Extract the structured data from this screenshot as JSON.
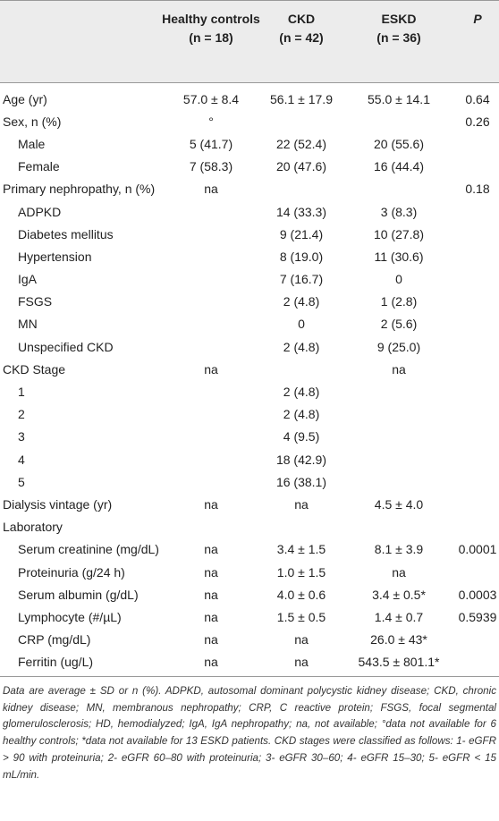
{
  "table": {
    "columns": [
      {
        "name": "Healthy controls",
        "n": "(n = 18)"
      },
      {
        "name": "CKD",
        "n": "(n = 42)"
      },
      {
        "name": "ESKD",
        "n": "(n = 36)"
      },
      {
        "name": "P"
      }
    ],
    "rows": [
      {
        "label": "Age (yr)",
        "healthy": "57.0 ± 8.4",
        "ckd": "56.1 ± 17.9",
        "eskd": "55.0 ± 14.1",
        "p": "0.64"
      },
      {
        "label": "Sex, n (%)",
        "healthy": "°",
        "p": "0.26"
      },
      {
        "label": "Male",
        "healthy": "5 (41.7)",
        "ckd": "22 (52.4)",
        "eskd": "20 (55.6)"
      },
      {
        "label": "Female",
        "healthy": "7 (58.3)",
        "ckd": "20 (47.6)",
        "eskd": "16 (44.4)"
      },
      {
        "label": "Primary nephropathy, n (%)",
        "healthy": "na",
        "p": "0.18"
      },
      {
        "label": "ADPKD",
        "ckd": "14 (33.3)",
        "eskd": "3 (8.3)"
      },
      {
        "label": "Diabetes mellitus",
        "ckd": "9 (21.4)",
        "eskd": "10 (27.8)"
      },
      {
        "label": "Hypertension",
        "ckd": "8 (19.0)",
        "eskd": "11 (30.6)"
      },
      {
        "label": "IgA",
        "ckd": "7 (16.7)",
        "eskd": "0"
      },
      {
        "label": "FSGS",
        "ckd": "2 (4.8)",
        "eskd": "1 (2.8)"
      },
      {
        "label": "MN",
        "ckd": "0",
        "eskd": "2 (5.6)"
      },
      {
        "label": "Unspecified CKD",
        "ckd": "2 (4.8)",
        "eskd": "9 (25.0)"
      },
      {
        "label": "CKD Stage",
        "healthy": "na",
        "eskd": "na"
      },
      {
        "label": "1",
        "ckd": "2 (4.8)"
      },
      {
        "label": "2",
        "ckd": "2 (4.8)"
      },
      {
        "label": "3",
        "ckd": "4 (9.5)"
      },
      {
        "label": "4",
        "ckd": "18 (42.9)"
      },
      {
        "label": "5",
        "ckd": "16 (38.1)"
      },
      {
        "label": "Dialysis vintage (yr)",
        "healthy": "na",
        "ckd": "na",
        "eskd": "4.5 ± 4.0"
      },
      {
        "label": "Laboratory"
      },
      {
        "label": "Serum creatinine (mg/dL)",
        "healthy": "na",
        "ckd": "3.4 ± 1.5",
        "eskd": "8.1 ± 3.9",
        "p": "0.0001"
      },
      {
        "label": "Proteinuria (g/24 h)",
        "healthy": "na",
        "ckd": "1.0 ± 1.5",
        "eskd": "na"
      },
      {
        "label": "Serum albumin (g/dL)",
        "healthy": "na",
        "ckd": "4.0 ± 0.6",
        "eskd": "3.4 ± 0.5*",
        "p": "0.0003"
      },
      {
        "label": "Lymphocyte (#/µL)",
        "healthy": "na",
        "ckd": "1.5 ± 0.5",
        "eskd": "1.4 ± 0.7",
        "p": "0.5939"
      },
      {
        "label": "CRP (mg/dL)",
        "healthy": "na",
        "ckd": "na",
        "eskd": "26.0 ± 43*"
      },
      {
        "label": "Ferritin (ug/L)",
        "healthy": "na",
        "ckd": "na",
        "eskd": "543.5 ± 801.1*"
      }
    ]
  },
  "footnote": "Data are average ± SD or n (%). ADPKD, autosomal dominant polycystic kidney disease; CKD, chronic kidney disease; MN, membranous nephropathy; CRP, C reactive protein; FSGS, focal segmental glomerulosclerosis; HD, hemodialyzed; IgA, IgA nephropathy; na, not available; °data not available for 6 healthy controls; *data not available for 13 ESKD patients. CKD stages were classified as follows: 1- eGFR > 90 with proteinuria; 2- eGFR 60–80 with proteinuria; 3- eGFR 30–60; 4- eGFR 15–30; 5- eGFR < 15 mL/min."
}
